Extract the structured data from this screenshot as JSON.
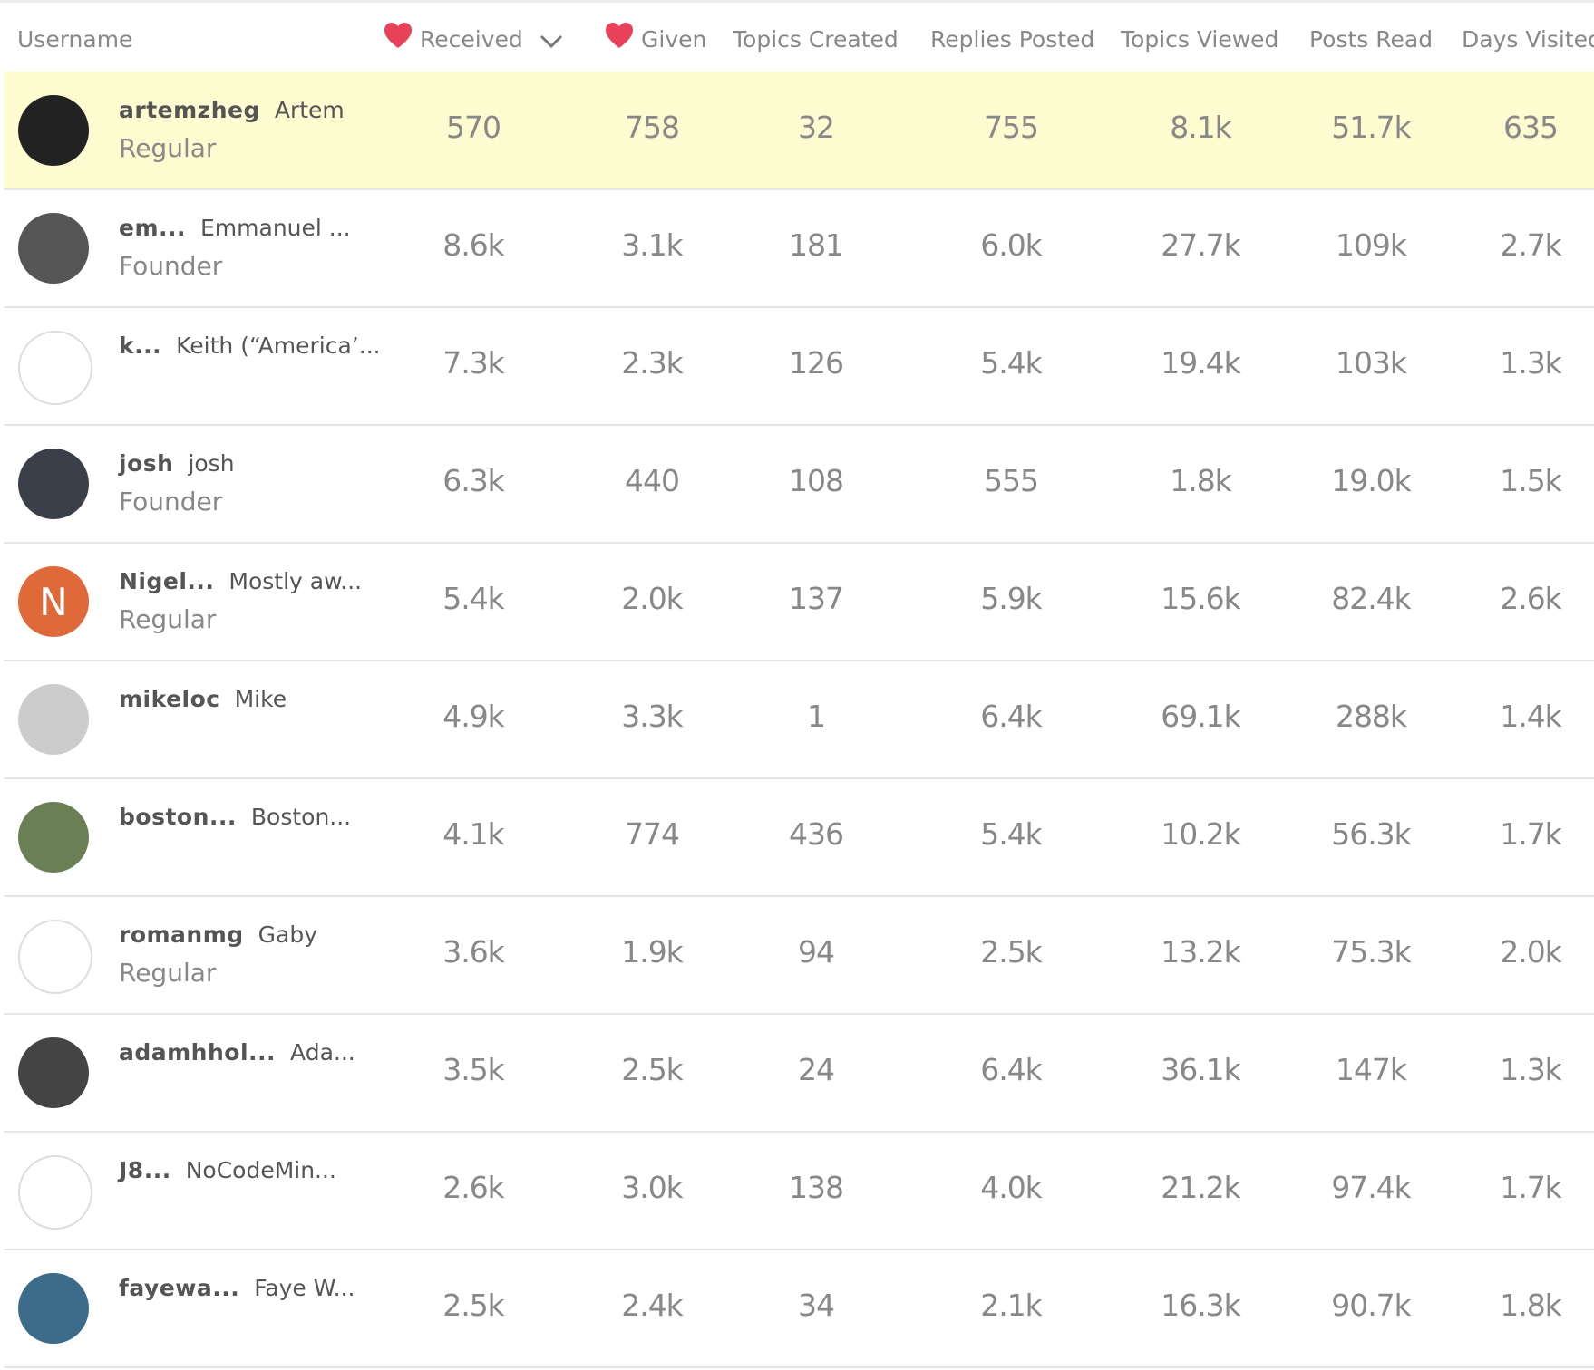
{
  "table": {
    "headers": [
      "Username",
      "Received",
      "Given",
      "Topics Created",
      "Replies Posted",
      "Topics Viewed",
      "Posts Read",
      "Days Visited"
    ],
    "rows": [
      {
        "username": "artemzheg",
        "name": "Artem",
        "title": "Regular",
        "stats": [
          "570",
          "758",
          "32",
          "755",
          "8.1k",
          "51.7k",
          "635"
        ]
      },
      {
        "username": "em...",
        "name": "Emmanuel ...",
        "title": "Founder",
        "stats": [
          "8.6k",
          "3.1k",
          "181",
          "6.0k",
          "27.7k",
          "109k",
          "2.7k"
        ]
      },
      {
        "username": "k...",
        "name": "Keith (“America’...",
        "stats": [
          "7.3k",
          "2.3k",
          "126",
          "5.4k",
          "19.4k",
          "103k",
          "1.3k"
        ]
      },
      {
        "username": "josh",
        "name": "josh",
        "title": "Founder",
        "stats": [
          "6.3k",
          "440",
          "108",
          "555",
          "1.8k",
          "19.0k",
          "1.5k"
        ]
      },
      {
        "username": "Nigel...",
        "name": "Mostly aw...",
        "title": "Regular",
        "avatar_letter": "N",
        "stats": [
          "5.4k",
          "2.0k",
          "137",
          "5.9k",
          "15.6k",
          "82.4k",
          "2.6k"
        ]
      },
      {
        "username": "mikeloc",
        "name": "Mike",
        "stats": [
          "4.9k",
          "3.3k",
          "1",
          "6.4k",
          "69.1k",
          "288k",
          "1.4k"
        ]
      },
      {
        "username": "boston...",
        "name": "Boston...",
        "stats": [
          "4.1k",
          "774",
          "436",
          "5.4k",
          "10.2k",
          "56.3k",
          "1.7k"
        ]
      },
      {
        "username": "romanmg",
        "name": "Gaby",
        "title": "Regular",
        "stats": [
          "3.6k",
          "1.9k",
          "94",
          "2.5k",
          "13.2k",
          "75.3k",
          "2.0k"
        ]
      },
      {
        "username": "adamhhol...",
        "name": "Ada...",
        "stats": [
          "3.5k",
          "2.5k",
          "24",
          "6.4k",
          "36.1k",
          "147k",
          "1.3k"
        ]
      },
      {
        "username": "J8...",
        "name": "NoCodeMin...",
        "stats": [
          "2.6k",
          "3.0k",
          "138",
          "4.0k",
          "21.2k",
          "97.4k",
          "1.7k"
        ]
      },
      {
        "username": "fayewa...",
        "name": "Faye W...",
        "stats": [
          "2.5k",
          "2.4k",
          "34",
          "2.1k",
          "16.3k",
          "90.7k",
          "1.8k"
        ]
      }
    ]
  }
}
